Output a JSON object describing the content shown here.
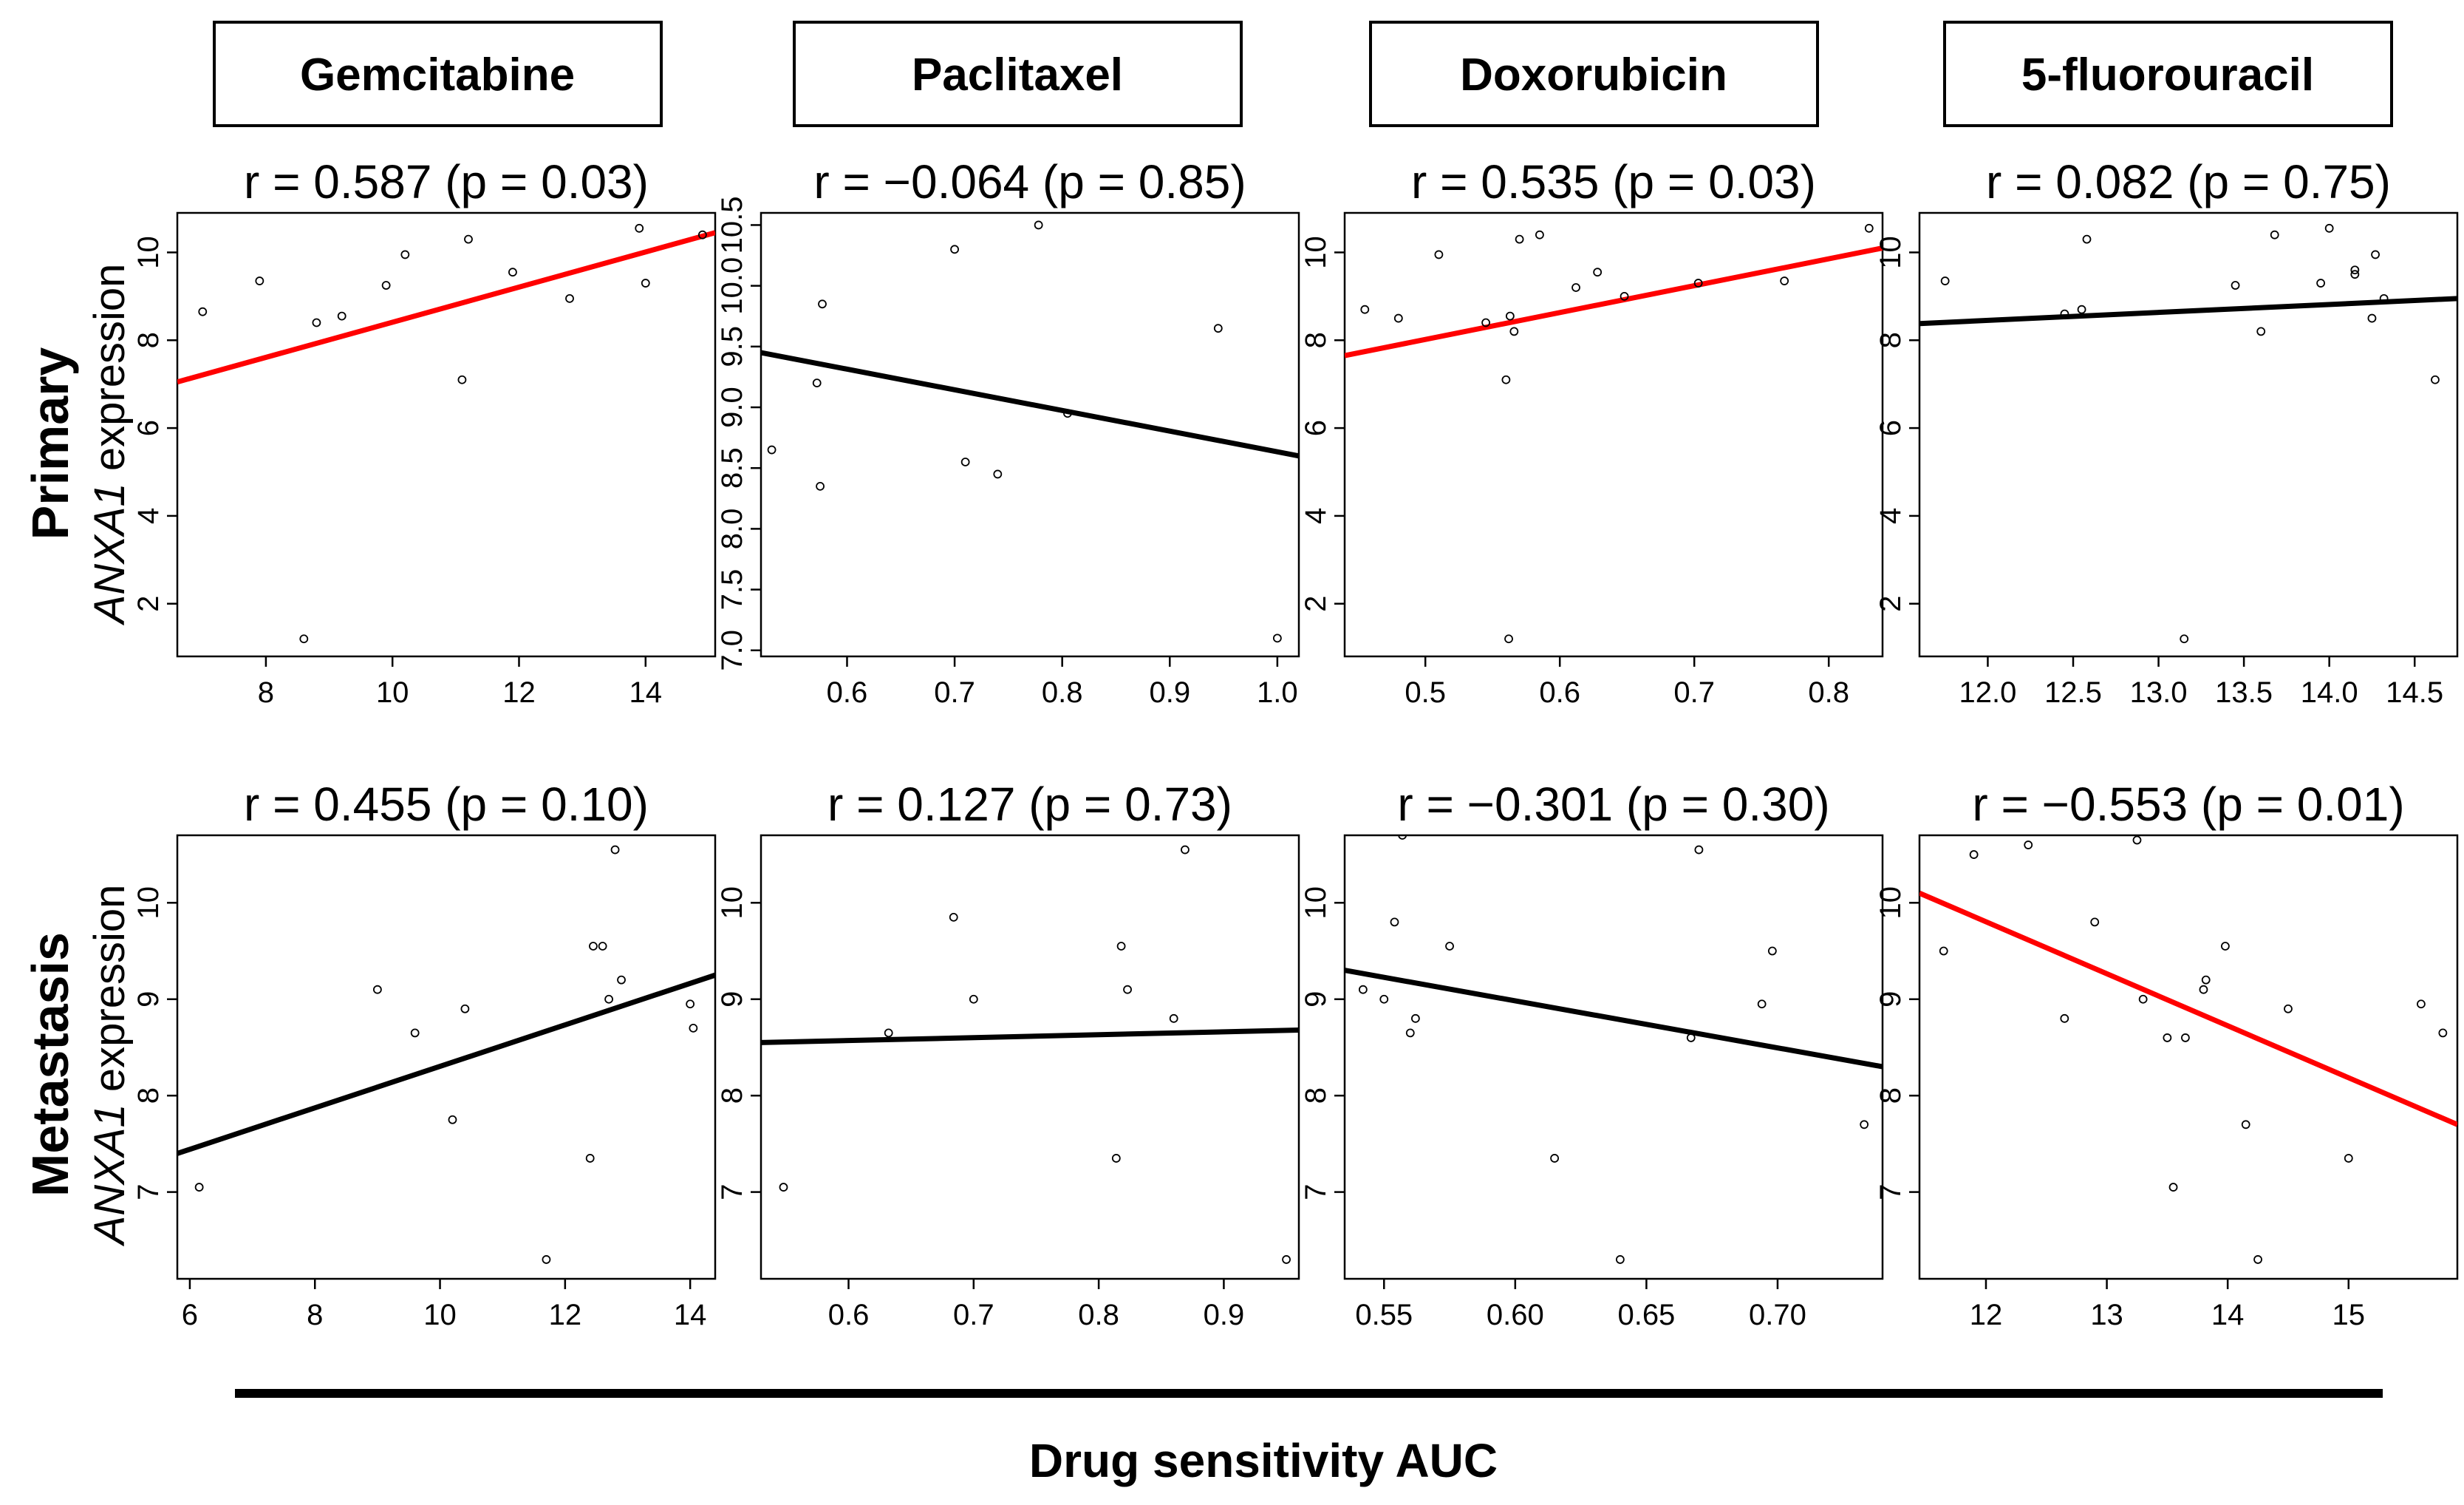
{
  "figure": {
    "x_axis_title": "Drug sensitivity AUC",
    "row_titles": [
      "Primary",
      "Metastasis"
    ],
    "y_label_gene": "ANXA1",
    "y_label_rest": " expression",
    "drugs": [
      "Gemcitabine",
      "Paclitaxel",
      "Doxorubicin",
      "5-fluorouracil"
    ]
  },
  "colors": {
    "significant": "#ff0000",
    "nonsignificant": "#000000",
    "frame": "#000000"
  },
  "chart_data": [
    {
      "type": "scatter",
      "row": "Primary",
      "drug": "Gemcitabine",
      "title": "r = 0.587 (p = 0.03)",
      "xlim": [
        6.6,
        15.1
      ],
      "ylim": [
        0.8,
        10.9
      ],
      "xticks": [
        8,
        10,
        12,
        14
      ],
      "xtick_labels": [
        "8",
        "10",
        "12",
        "14"
      ],
      "yticks": [
        2,
        4,
        6,
        8,
        10
      ],
      "ytick_labels": [
        "2",
        "4",
        "6",
        "8",
        "10"
      ],
      "x": [
        7.0,
        7.9,
        8.6,
        8.8,
        9.2,
        9.9,
        10.2,
        11.1,
        11.2,
        11.9,
        12.8,
        13.9,
        14.0,
        14.9
      ],
      "y": [
        8.65,
        9.35,
        1.2,
        8.4,
        8.55,
        9.25,
        9.95,
        7.1,
        10.3,
        9.55,
        8.95,
        10.55,
        9.3,
        10.4
      ],
      "fit": {
        "x": [
          6.6,
          15.1
        ],
        "y": [
          7.05,
          10.45
        ]
      },
      "fit_color": "significant"
    },
    {
      "type": "scatter",
      "row": "Primary",
      "drug": "Paclitaxel",
      "title": "r = −0.064 (p = 0.85)",
      "xlim": [
        0.52,
        1.02
      ],
      "ylim": [
        6.95,
        10.6
      ],
      "xticks": [
        0.6,
        0.7,
        0.8,
        0.9,
        1.0
      ],
      "xtick_labels": [
        "0.6",
        "0.7",
        "0.8",
        "0.9",
        "1.0"
      ],
      "yticks": [
        7.0,
        7.5,
        8.0,
        8.5,
        9.0,
        9.5,
        10.0,
        10.5
      ],
      "ytick_labels": [
        "7.0",
        "7.5",
        "8.0",
        "8.5",
        "9.0",
        "9.5",
        "10.0",
        "10.5"
      ],
      "x": [
        0.53,
        0.572,
        0.575,
        0.577,
        0.7,
        0.71,
        0.74,
        0.778,
        0.805,
        0.945,
        1.0
      ],
      "y": [
        8.65,
        9.2,
        8.35,
        9.85,
        10.3,
        8.55,
        8.45,
        10.5,
        8.95,
        9.65,
        7.1
      ],
      "fit": {
        "x": [
          0.52,
          1.02
        ],
        "y": [
          9.45,
          8.6
        ]
      },
      "fit_color": "nonsignificant"
    },
    {
      "type": "scatter",
      "row": "Primary",
      "drug": "Doxorubicin",
      "title": "r = 0.535 (p = 0.03)",
      "xlim": [
        0.44,
        0.84
      ],
      "ylim": [
        0.8,
        10.9
      ],
      "xticks": [
        0.5,
        0.6,
        0.7,
        0.8
      ],
      "xtick_labels": [
        "0.5",
        "0.6",
        "0.7",
        "0.8"
      ],
      "yticks": [
        2,
        4,
        6,
        8,
        10
      ],
      "ytick_labels": [
        "2",
        "4",
        "6",
        "8",
        "10"
      ],
      "x": [
        0.455,
        0.48,
        0.51,
        0.545,
        0.56,
        0.562,
        0.563,
        0.566,
        0.57,
        0.585,
        0.612,
        0.628,
        0.648,
        0.703,
        0.767,
        0.83
      ],
      "y": [
        8.7,
        8.5,
        9.95,
        8.4,
        7.1,
        1.2,
        8.55,
        8.2,
        10.3,
        10.4,
        9.2,
        9.55,
        9.0,
        9.3,
        9.35,
        10.55
      ],
      "fit": {
        "x": [
          0.44,
          0.84
        ],
        "y": [
          7.65,
          10.1
        ]
      },
      "fit_color": "significant"
    },
    {
      "type": "scatter",
      "row": "Primary",
      "drug": "5-fluorouracil",
      "title": "r = 0.082 (p = 0.75)",
      "xlim": [
        11.6,
        14.75
      ],
      "ylim": [
        0.8,
        10.9
      ],
      "xticks": [
        12.0,
        12.5,
        13.0,
        13.5,
        14.0,
        14.5
      ],
      "xtick_labels": [
        "12.0",
        "12.5",
        "13.0",
        "13.5",
        "14.0",
        "14.5"
      ],
      "yticks": [
        2,
        4,
        6,
        8,
        10
      ],
      "ytick_labels": [
        "2",
        "4",
        "6",
        "8",
        "10"
      ],
      "x": [
        11.75,
        12.45,
        12.55,
        12.58,
        13.15,
        13.45,
        13.6,
        13.68,
        13.95,
        14.0,
        14.15,
        14.15,
        14.25,
        14.27,
        14.32,
        14.62
      ],
      "y": [
        9.35,
        8.6,
        8.7,
        10.3,
        1.2,
        9.25,
        8.2,
        10.4,
        9.3,
        10.55,
        9.6,
        9.5,
        8.5,
        9.95,
        8.95,
        7.1
      ],
      "fit": {
        "x": [
          11.6,
          14.75
        ],
        "y": [
          8.38,
          8.95
        ]
      },
      "fit_color": "nonsignificant"
    },
    {
      "type": "scatter",
      "row": "Metastasis",
      "drug": "Gemcitabine",
      "title": "r = 0.455 (p = 0.10)",
      "xlim": [
        5.8,
        14.4
      ],
      "ylim": [
        6.1,
        10.7
      ],
      "xticks": [
        6,
        8,
        10,
        12,
        14
      ],
      "xtick_labels": [
        "6",
        "8",
        "10",
        "12",
        "14"
      ],
      "yticks": [
        7,
        8,
        9,
        10
      ],
      "ytick_labels": [
        "7",
        "8",
        "9",
        "10"
      ],
      "x": [
        6.15,
        9.0,
        9.6,
        10.2,
        10.4,
        11.7,
        12.4,
        12.45,
        12.6,
        12.7,
        12.8,
        12.9,
        14.0,
        14.05
      ],
      "y": [
        7.05,
        9.1,
        8.65,
        7.75,
        8.9,
        6.3,
        7.35,
        9.55,
        9.55,
        9.0,
        10.55,
        9.2,
        8.95,
        8.7
      ],
      "fit": {
        "x": [
          5.8,
          14.4
        ],
        "y": [
          7.4,
          9.25
        ]
      },
      "fit_color": "nonsignificant"
    },
    {
      "type": "scatter",
      "row": "Metastasis",
      "drug": "Paclitaxel",
      "title": "r = 0.127 (p = 0.73)",
      "xlim": [
        0.53,
        0.96
      ],
      "ylim": [
        6.1,
        10.7
      ],
      "xticks": [
        0.6,
        0.7,
        0.8,
        0.9
      ],
      "xtick_labels": [
        "0.6",
        "0.7",
        "0.8",
        "0.9"
      ],
      "yticks": [
        7,
        8,
        9,
        10
      ],
      "ytick_labels": [
        "7",
        "8",
        "9",
        "10"
      ],
      "x": [
        0.548,
        0.632,
        0.684,
        0.7,
        0.814,
        0.818,
        0.823,
        0.86,
        0.869,
        0.95
      ],
      "y": [
        7.05,
        8.65,
        9.85,
        9.0,
        7.35,
        9.55,
        9.1,
        8.8,
        10.55,
        6.3
      ],
      "fit": {
        "x": [
          0.53,
          0.96
        ],
        "y": [
          8.55,
          8.68
        ]
      },
      "fit_color": "nonsignificant"
    },
    {
      "type": "scatter",
      "row": "Metastasis",
      "drug": "Doxorubicin",
      "title": "r = −0.301 (p = 0.30)",
      "xlim": [
        0.535,
        0.74
      ],
      "ylim": [
        6.1,
        10.7
      ],
      "xticks": [
        0.55,
        0.6,
        0.65,
        0.7
      ],
      "xtick_labels": [
        "0.55",
        "0.60",
        "0.65",
        "0.70"
      ],
      "yticks": [
        7,
        8,
        9,
        10
      ],
      "ytick_labels": [
        "7",
        "8",
        "9",
        "10"
      ],
      "x": [
        0.542,
        0.55,
        0.554,
        0.557,
        0.56,
        0.562,
        0.575,
        0.615,
        0.64,
        0.667,
        0.67,
        0.694,
        0.698,
        0.733
      ],
      "y": [
        9.1,
        9.0,
        9.8,
        10.7,
        8.65,
        8.8,
        9.55,
        7.35,
        6.3,
        8.6,
        10.55,
        8.95,
        9.5,
        7.7
      ],
      "fit": {
        "x": [
          0.535,
          0.74
        ],
        "y": [
          9.3,
          8.3
        ]
      },
      "fit_color": "nonsignificant"
    },
    {
      "type": "scatter",
      "row": "Metastasis",
      "drug": "5-fluorouracil",
      "title": "r = −0.553 (p = 0.01)",
      "xlim": [
        11.45,
        15.9
      ],
      "ylim": [
        6.1,
        10.7
      ],
      "xticks": [
        12,
        13,
        14,
        15
      ],
      "xtick_labels": [
        "12",
        "13",
        "14",
        "15"
      ],
      "yticks": [
        7,
        8,
        9,
        10
      ],
      "ytick_labels": [
        "7",
        "8",
        "9",
        "10"
      ],
      "x": [
        11.65,
        11.9,
        12.35,
        12.65,
        12.9,
        13.25,
        13.3,
        13.5,
        13.55,
        13.65,
        13.8,
        13.82,
        13.98,
        14.15,
        14.25,
        14.5,
        15.0,
        15.6,
        15.78
      ],
      "y": [
        9.5,
        10.5,
        10.6,
        8.8,
        9.8,
        10.65,
        9.0,
        8.6,
        7.05,
        8.6,
        9.1,
        9.2,
        9.55,
        7.7,
        6.3,
        8.9,
        7.35,
        8.95,
        8.65
      ],
      "fit": {
        "x": [
          11.45,
          15.9
        ],
        "y": [
          10.1,
          7.7
        ]
      },
      "fit_color": "significant"
    }
  ]
}
